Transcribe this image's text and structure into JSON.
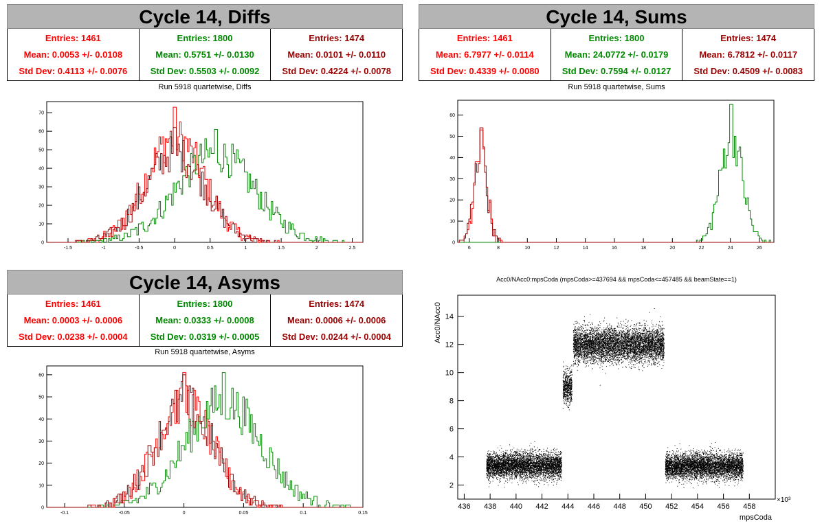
{
  "panels": [
    {
      "title": "Cycle 14, Diffs",
      "subtitle": "Run 5918 quartetwise, Diffs",
      "stats": [
        {
          "entries": "Entries: 1461",
          "mean": "Mean: 0.0053 +/- 0.0108",
          "std": "Std Dev: 0.4113 +/- 0.0076",
          "color": "#ff0000"
        },
        {
          "entries": "Entries: 1800",
          "mean": "Mean: 0.5751 +/- 0.0130",
          "std": "Std Dev: 0.5503 +/- 0.0092",
          "color": "#008800"
        },
        {
          "entries": "Entries: 1474",
          "mean": "Mean: 0.0101 +/- 0.0110",
          "std": "Std Dev: 0.4224 +/- 0.0078",
          "color": "#990000"
        }
      ]
    },
    {
      "title": "Cycle 14, Sums",
      "subtitle": "Run 5918 quartetwise, Sums",
      "stats": [
        {
          "entries": "Entries: 1461",
          "mean": "Mean: 6.7977 +/- 0.0114",
          "std": "Std Dev: 0.4339 +/- 0.0080",
          "color": "#ff0000"
        },
        {
          "entries": "Entries: 1800",
          "mean": "Mean: 24.0772 +/- 0.0179",
          "std": "Std Dev: 0.7594 +/- 0.0127",
          "color": "#008800"
        },
        {
          "entries": "Entries: 1474",
          "mean": "Mean: 6.7812 +/- 0.0117",
          "std": "Std Dev: 0.4509 +/- 0.0083",
          "color": "#990000"
        }
      ]
    },
    {
      "title": "Cycle 14, Asyms",
      "subtitle": "Run 5918 quartetwise, Asyms",
      "stats": [
        {
          "entries": "Entries: 1461",
          "mean": "Mean: 0.0003 +/- 0.0006",
          "std": "Std Dev: 0.0238 +/- 0.0004",
          "color": "#ff0000"
        },
        {
          "entries": "Entries: 1800",
          "mean": "Mean: 0.0333 +/- 0.0008",
          "std": "Std Dev: 0.0319 +/- 0.0005",
          "color": "#008800"
        },
        {
          "entries": "Entries: 1474",
          "mean": "Mean: 0.0006 +/- 0.0006",
          "std": "Std Dev: 0.0244 +/- 0.0004",
          "color": "#990000"
        }
      ]
    }
  ],
  "scatter_title": "Acc0/NAcc0:mpsCoda (mpsCoda>=437694 && mpsCoda<=457485 && beamState==1)",
  "chart_data": [
    {
      "type": "bar",
      "name": "diffs",
      "xlim": [
        -1.8,
        2.65
      ],
      "ylim": [
        0,
        76
      ],
      "xticks": [
        "-1.5",
        "-1",
        "-0.5",
        "0",
        "0.5",
        "1",
        "1.5",
        "2",
        "2.5"
      ],
      "xtick_values": [
        -1.5,
        -1,
        -0.5,
        0,
        0.5,
        1,
        1.5,
        2,
        2.5
      ],
      "yticks": [
        "0",
        "10",
        "20",
        "30",
        "40",
        "50",
        "60",
        "70"
      ],
      "ytick_values": [
        0,
        10,
        20,
        30,
        40,
        50,
        60,
        70
      ],
      "series": [
        {
          "color": "#ff0000",
          "mean": 0.0053,
          "sd": 0.4113,
          "n": 1461,
          "peak": 73
        },
        {
          "color": "#008800",
          "mean": 0.5751,
          "sd": 0.5503,
          "n": 1800,
          "peak": 61
        },
        {
          "color": "#990000",
          "mean": 0.0101,
          "sd": 0.4224,
          "n": 1474,
          "peak": 62
        }
      ]
    },
    {
      "type": "bar",
      "name": "sums",
      "xlim": [
        5.2,
        27
      ],
      "ylim": [
        0,
        67
      ],
      "xticks": [
        "6",
        "8",
        "10",
        "12",
        "14",
        "16",
        "18",
        "20",
        "22",
        "24",
        "26"
      ],
      "xtick_values": [
        6,
        8,
        10,
        12,
        14,
        16,
        18,
        20,
        22,
        24,
        26
      ],
      "yticks": [
        "0",
        "10",
        "20",
        "30",
        "40",
        "50",
        "60"
      ],
      "ytick_values": [
        0,
        10,
        20,
        30,
        40,
        50,
        60
      ],
      "series": [
        {
          "color": "#ff0000",
          "mean": 6.7977,
          "sd": 0.4339,
          "n": 1461,
          "peak": 53
        },
        {
          "color": "#008800",
          "mean": 24.0772,
          "sd": 0.7594,
          "n": 1800,
          "peak": 65
        },
        {
          "color": "#990000",
          "mean": 6.7812,
          "sd": 0.4509,
          "n": 1474,
          "peak": 54
        }
      ]
    },
    {
      "type": "bar",
      "name": "asyms",
      "xlim": [
        -0.115,
        0.15
      ],
      "ylim": [
        0,
        64
      ],
      "xticks": [
        "-0.1",
        "-0.05",
        "0",
        "0.05",
        "0.1",
        "0.15"
      ],
      "xtick_values": [
        -0.1,
        -0.05,
        0,
        0.05,
        0.1,
        0.15
      ],
      "yticks": [
        "0",
        "10",
        "20",
        "30",
        "40",
        "50",
        "60"
      ],
      "ytick_values": [
        0,
        10,
        20,
        30,
        40,
        50,
        60
      ],
      "series": [
        {
          "color": "#ff0000",
          "mean": 0.0003,
          "sd": 0.0238,
          "n": 1461,
          "peak": 61
        },
        {
          "color": "#008800",
          "mean": 0.0333,
          "sd": 0.0319,
          "n": 1800,
          "peak": 61
        },
        {
          "color": "#990000",
          "mean": 0.0006,
          "sd": 0.0244,
          "n": 1474,
          "peak": 60
        }
      ]
    },
    {
      "type": "scatter",
      "name": "acc0-vs-mpscoda",
      "xlabel": "mpsCoda",
      "ylabel": "Acc0/NAcc0",
      "xscale_label": "×10³",
      "xlim": [
        435.5,
        460
      ],
      "ylim": [
        1,
        15.5
      ],
      "xticks": [
        "436",
        "438",
        "440",
        "442",
        "444",
        "446",
        "448",
        "450",
        "452",
        "454",
        "456",
        "458"
      ],
      "xtick_values": [
        436,
        438,
        440,
        442,
        444,
        446,
        448,
        450,
        452,
        454,
        456,
        458
      ],
      "yticks": [
        "2",
        "4",
        "6",
        "8",
        "10",
        "12",
        "14"
      ],
      "ytick_values": [
        2,
        4,
        6,
        8,
        10,
        12,
        14
      ],
      "clusters": [
        {
          "x": [
            437.7,
            443.5
          ],
          "y": 3.4,
          "spread": 0.45
        },
        {
          "x": [
            443.6,
            444.3
          ],
          "y": 9.0,
          "spread": 0.6
        },
        {
          "x": [
            444.4,
            451.4
          ],
          "y": 12.0,
          "spread": 0.6
        },
        {
          "x": [
            451.5,
            457.5
          ],
          "y": 3.35,
          "spread": 0.45
        }
      ]
    }
  ]
}
